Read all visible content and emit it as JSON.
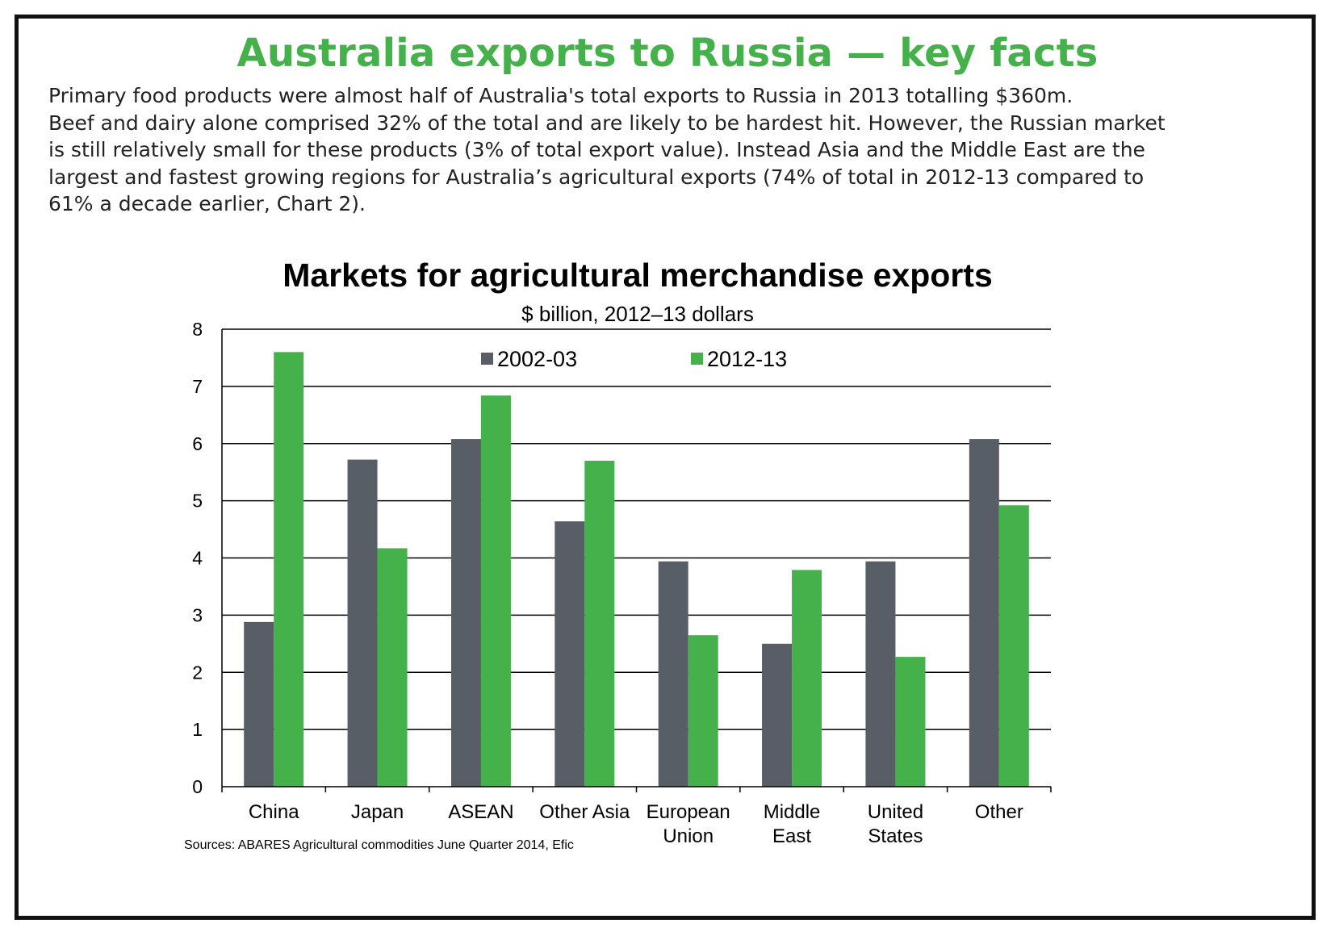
{
  "headline": "Australia exports to Russia — key facts",
  "intro_lines": [
    "Primary food products were almost half of Australia's total exports to Russia in 2013 totalling $360m.",
    "Beef and dairy alone comprised 32% of the total and are likely to be hardest hit. However, the Russian market",
    "is still relatively small for these products (3% of total export value). Instead Asia and the Middle East are the",
    "largest and fastest growing regions for Australia’s agricultural exports (74% of total in 2012-13 compared to",
    "61% a decade earlier, Chart 2)."
  ],
  "chart_data": {
    "type": "bar",
    "title": "Markets for agricultural merchandise exports",
    "subtitle": "$ billion, 2012–13 dollars",
    "xlabel": "",
    "ylabel": "",
    "ylim": [
      0,
      8
    ],
    "yticks": [
      "0",
      "1",
      "2",
      "3",
      "4",
      "5",
      "6",
      "7",
      "8"
    ],
    "grid": true,
    "legend_position": "top-center",
    "categories": [
      [
        "China"
      ],
      [
        "Japan"
      ],
      [
        "ASEAN"
      ],
      [
        "Other Asia"
      ],
      [
        "European",
        "Union"
      ],
      [
        "Middle",
        "East"
      ],
      [
        "United",
        "States"
      ],
      [
        "Other"
      ]
    ],
    "series": [
      {
        "name": "2002-03",
        "color": "#575e66",
        "values": [
          2.88,
          5.72,
          6.08,
          4.64,
          3.94,
          2.5,
          3.94,
          6.08
        ]
      },
      {
        "name": "2012-13",
        "color": "#44b14a",
        "values": [
          7.6,
          4.17,
          6.84,
          5.7,
          2.65,
          3.79,
          2.27,
          4.92
        ]
      }
    ],
    "source": "Sources: ABARES Agricultural commodities June Quarter 2014, Efic"
  }
}
